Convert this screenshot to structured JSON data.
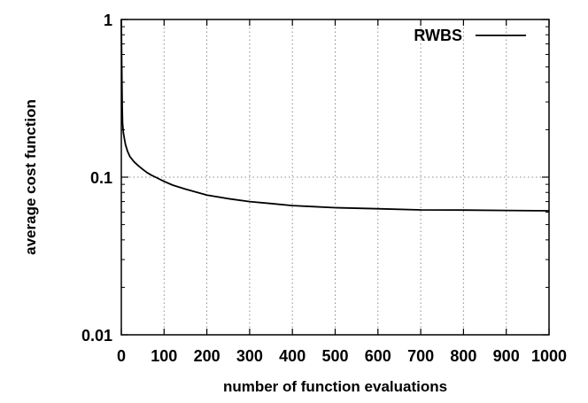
{
  "chart_data": {
    "type": "line",
    "title": "",
    "xlabel": "number of function evaluations",
    "ylabel": "average cost function",
    "x_scale": "linear",
    "y_scale": "log",
    "xlim": [
      0,
      1000
    ],
    "ylim": [
      0.01,
      1
    ],
    "x_ticks": [
      0,
      100,
      200,
      300,
      400,
      500,
      600,
      700,
      800,
      900,
      1000
    ],
    "x_tick_labels": [
      "0",
      "100",
      "200",
      "300",
      "400",
      "500",
      "600",
      "700",
      "800",
      "900",
      "1000"
    ],
    "y_ticks": [
      0.01,
      0.1,
      1
    ],
    "y_tick_labels": [
      "0.01",
      "0.1",
      "1"
    ],
    "grid": true,
    "legend_position": "top-right",
    "series": [
      {
        "name": "RWBS",
        "color": "#000000",
        "x": [
          0,
          1,
          2,
          3,
          5,
          8,
          10,
          15,
          20,
          30,
          40,
          50,
          60,
          70,
          80,
          100,
          120,
          150,
          200,
          250,
          300,
          350,
          400,
          450,
          500,
          600,
          700,
          800,
          900,
          1000
        ],
        "y": [
          1.0,
          0.5,
          0.28,
          0.22,
          0.19,
          0.17,
          0.16,
          0.145,
          0.135,
          0.125,
          0.118,
          0.112,
          0.107,
          0.103,
          0.1,
          0.094,
          0.089,
          0.084,
          0.077,
          0.073,
          0.07,
          0.068,
          0.066,
          0.065,
          0.064,
          0.063,
          0.062,
          0.0618,
          0.0615,
          0.0612
        ]
      }
    ]
  }
}
